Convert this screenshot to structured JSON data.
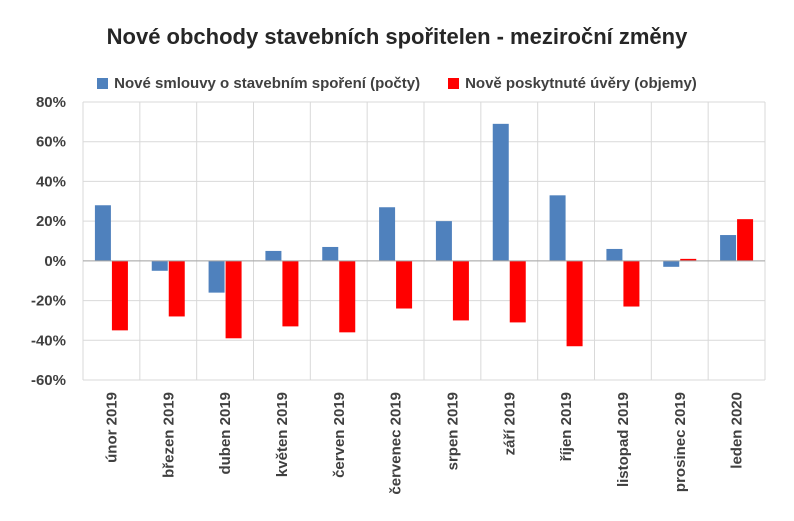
{
  "chart_data": {
    "type": "bar",
    "title": "Nové obchody stavebních spořitelen - meziroční změny",
    "xlabel": "",
    "ylabel": "",
    "ylim": [
      -60,
      80
    ],
    "yticks": [
      -60,
      -40,
      -20,
      0,
      20,
      40,
      60,
      80
    ],
    "ytick_labels": [
      "-60%",
      "-40%",
      "-20%",
      "0%",
      "20%",
      "40%",
      "60%",
      "80%"
    ],
    "grid": true,
    "legend_position": "top",
    "categories": [
      "únor 2019",
      "březen 2019",
      "duben 2019",
      "květen 2019",
      "červen 2019",
      "červenec 2019",
      "srpen 2019",
      "září 2019",
      "říjen 2019",
      "listopad 2019",
      "prosinec 2019",
      "leden 2020"
    ],
    "series": [
      {
        "name": "Nové smlouvy o stavebním spoření (počty)",
        "color": "#4f81bd",
        "values": [
          28,
          -5,
          -16,
          5,
          7,
          27,
          20,
          69,
          33,
          6,
          -3,
          13
        ]
      },
      {
        "name": "Nově poskytnuté úvěry (objemy)",
        "color": "#ff0000",
        "values": [
          -35,
          -28,
          -39,
          -33,
          -36,
          -24,
          -30,
          -31,
          -43,
          -23,
          1,
          21
        ]
      }
    ]
  }
}
